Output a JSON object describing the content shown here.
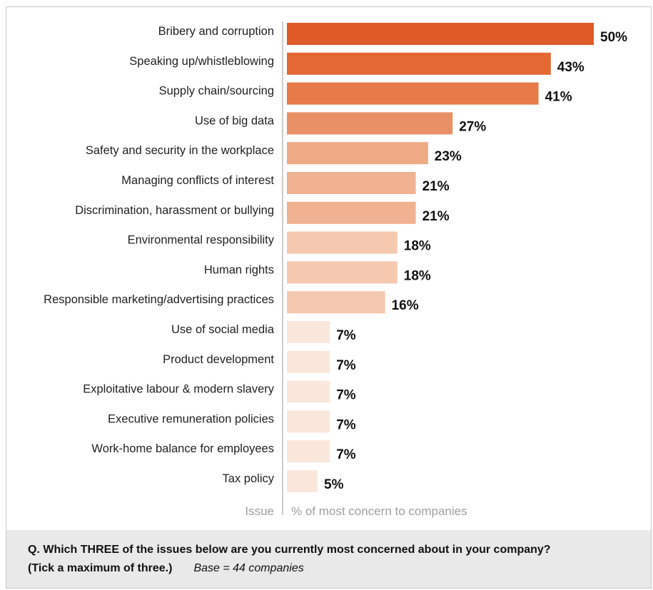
{
  "chart_data": {
    "type": "bar",
    "orientation": "horizontal",
    "categories": [
      "Bribery and corruption",
      "Speaking up/whistleblowing",
      "Supply chain/sourcing",
      "Use of big data",
      "Safety and security in the workplace",
      "Managing conflicts of interest",
      "Discrimination, harassment or bullying",
      "Environmental responsibility",
      "Human rights",
      "Responsible marketing/advertising practices",
      "Use of social media",
      "Product development",
      "Exploitative labour & modern slavery",
      "Executive remuneration policies",
      "Work-home balance for employees",
      "Tax policy"
    ],
    "values": [
      50,
      43,
      41,
      27,
      23,
      21,
      21,
      18,
      18,
      16,
      7,
      7,
      7,
      7,
      7,
      5
    ],
    "value_labels": [
      "50%",
      "43%",
      "41%",
      "27%",
      "23%",
      "21%",
      "21%",
      "18%",
      "18%",
      "16%",
      "7%",
      "7%",
      "7%",
      "7%",
      "7%",
      "5%"
    ],
    "colors": [
      "#e05a27",
      "#e46833",
      "#e67a48",
      "#ea9066",
      "#efaa86",
      "#f1b292",
      "#f1b292",
      "#f5c9b0",
      "#f5c9b0",
      "#f5c9b0",
      "#fae7dc",
      "#fae7dc",
      "#fae7dc",
      "#fae7dc",
      "#fae7dc",
      "#fae7dc"
    ],
    "xlim": [
      0,
      50
    ],
    "ylabel": "Issue",
    "xlabel": "% of most concern to companies",
    "grid": false,
    "legend": "none"
  },
  "footer": {
    "question_line1": "Q. Which THREE of the issues below are you currently most concerned about in your company?",
    "question_line2": "(Tick a maximum of three.)",
    "base": "Base = 44 companies"
  }
}
